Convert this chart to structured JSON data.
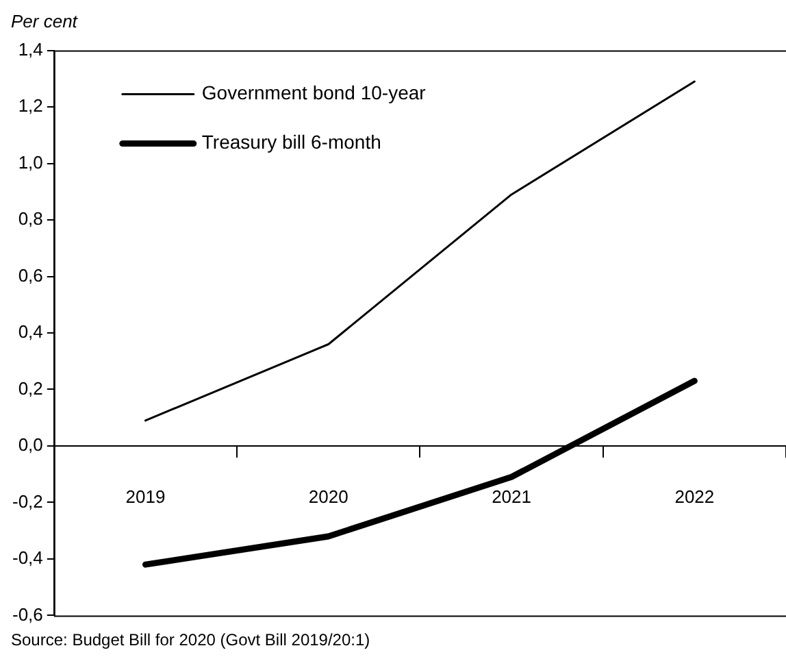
{
  "chart_data": {
    "type": "line",
    "ylabel": "Per cent",
    "categories": [
      "2019",
      "2020",
      "2021",
      "2022"
    ],
    "series": [
      {
        "name": "Government bond 10-year",
        "color": "#000000",
        "values": [
          0.09,
          0.36,
          0.89,
          1.29
        ]
      },
      {
        "name": "Treasury bill 6-month",
        "color": "#000000",
        "values": [
          -0.42,
          -0.32,
          -0.11,
          0.23
        ]
      }
    ],
    "ylim": [
      -0.6,
      1.4
    ],
    "yticks": [
      {
        "value": -0.6,
        "label": "-0,6"
      },
      {
        "value": -0.4,
        "label": "-0,4"
      },
      {
        "value": -0.2,
        "label": "-0,2"
      },
      {
        "value": 0,
        "label": "0,0"
      },
      {
        "value": 0.2,
        "label": "0,2"
      },
      {
        "value": 0.4,
        "label": "0,4"
      },
      {
        "value": 0.6,
        "label": "0,6"
      },
      {
        "value": 0.8,
        "label": "0,8"
      },
      {
        "value": 1,
        "label": "1,0"
      },
      {
        "value": 1.2,
        "label": "1,2"
      },
      {
        "value": 1.4,
        "label": "1,4"
      }
    ],
    "grid": false,
    "legend": "top left",
    "marker": "none",
    "line_style": "solid",
    "annotations": [
      "Source: Budget Bill for 2020 (Govt Bill 2019/20:1)"
    ]
  }
}
